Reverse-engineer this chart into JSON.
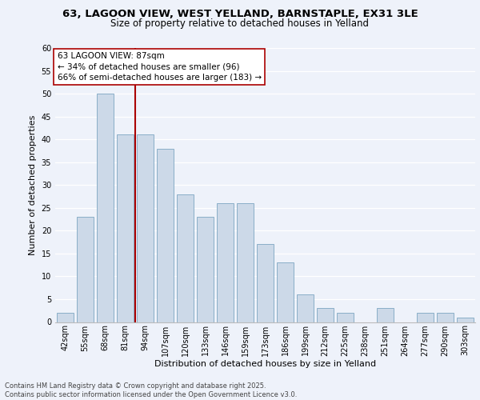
{
  "title_line1": "63, LAGOON VIEW, WEST YELLAND, BARNSTAPLE, EX31 3LE",
  "title_line2": "Size of property relative to detached houses in Yelland",
  "xlabel": "Distribution of detached houses by size in Yelland",
  "ylabel": "Number of detached properties",
  "categories": [
    "42sqm",
    "55sqm",
    "68sqm",
    "81sqm",
    "94sqm",
    "107sqm",
    "120sqm",
    "133sqm",
    "146sqm",
    "159sqm",
    "173sqm",
    "186sqm",
    "199sqm",
    "212sqm",
    "225sqm",
    "238sqm",
    "251sqm",
    "264sqm",
    "277sqm",
    "290sqm",
    "303sqm"
  ],
  "values": [
    2,
    23,
    50,
    41,
    41,
    38,
    28,
    23,
    26,
    26,
    17,
    13,
    6,
    3,
    2,
    0,
    3,
    0,
    2,
    2,
    1
  ],
  "bar_color": "#ccd9e8",
  "bar_edge_color": "#8aaec8",
  "vline_x_index": 3.5,
  "vline_color": "#aa0000",
  "annotation_text": "63 LAGOON VIEW: 87sqm\n← 34% of detached houses are smaller (96)\n66% of semi-detached houses are larger (183) →",
  "annotation_box_color": "white",
  "annotation_box_edge_color": "#aa0000",
  "ylim": [
    0,
    60
  ],
  "yticks": [
    0,
    5,
    10,
    15,
    20,
    25,
    30,
    35,
    40,
    45,
    50,
    55,
    60
  ],
  "footer": "Contains HM Land Registry data © Crown copyright and database right 2025.\nContains public sector information licensed under the Open Government Licence v3.0.",
  "bg_color": "#eef2fa",
  "grid_color": "#ffffff",
  "bar_width": 0.85,
  "fig_width": 6.0,
  "fig_height": 5.0,
  "title1_fontsize": 9.5,
  "title2_fontsize": 8.5,
  "ylabel_fontsize": 8,
  "xlabel_fontsize": 8,
  "tick_fontsize": 7,
  "annot_fontsize": 7.5,
  "footer_fontsize": 6
}
